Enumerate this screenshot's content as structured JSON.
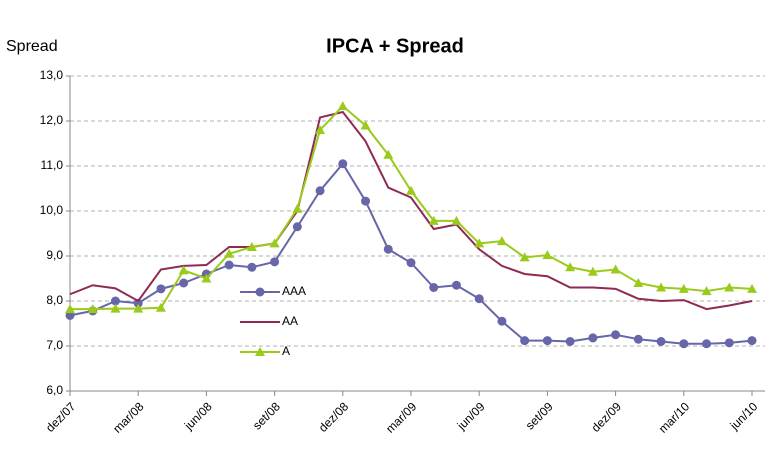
{
  "chart_data": {
    "type": "line",
    "title": "IPCA + Spread",
    "y_label": "Spread",
    "categories": [
      "dez/07",
      null,
      null,
      "mar/08",
      null,
      null,
      "jun/08",
      null,
      null,
      "set/08",
      null,
      null,
      "dez/08",
      null,
      null,
      "mar/09",
      null,
      null,
      "jun/09",
      null,
      null,
      "set/09",
      null,
      null,
      "dez/09",
      null,
      null,
      "mar/10",
      null,
      null,
      "jun/10"
    ],
    "series": [
      {
        "name": "AAA",
        "color": "#6666a8",
        "marker": "circle",
        "values": [
          7.68,
          7.78,
          8.0,
          7.95,
          8.27,
          8.4,
          8.6,
          8.8,
          8.75,
          8.87,
          9.65,
          10.45,
          11.05,
          10.22,
          9.15,
          8.85,
          8.3,
          8.35,
          8.05,
          7.55,
          7.12,
          7.12,
          7.1,
          7.18,
          7.25,
          7.15,
          7.1,
          7.05,
          7.05,
          7.07,
          7.12
        ]
      },
      {
        "name": "AA",
        "color": "#8e2a55",
        "marker": "none",
        "values": [
          8.15,
          8.35,
          8.28,
          8.0,
          8.7,
          8.78,
          8.8,
          9.2,
          9.2,
          9.28,
          10.0,
          12.08,
          12.2,
          11.55,
          10.52,
          10.3,
          9.6,
          9.7,
          9.15,
          8.78,
          8.6,
          8.55,
          8.3,
          8.3,
          8.27,
          8.05,
          8.0,
          8.02,
          7.82,
          7.9,
          8.0
        ]
      },
      {
        "name": "A",
        "color": "#9acb1c",
        "marker": "triangle",
        "values": [
          7.82,
          7.82,
          7.83,
          7.83,
          7.85,
          8.68,
          8.5,
          9.05,
          9.2,
          9.28,
          10.05,
          11.8,
          12.33,
          11.9,
          11.25,
          10.45,
          9.78,
          9.78,
          9.28,
          9.33,
          8.97,
          9.02,
          8.75,
          8.65,
          8.7,
          8.4,
          8.3,
          8.27,
          8.22,
          8.3,
          8.27
        ]
      }
    ],
    "ylim": [
      6,
      13
    ],
    "yticks": [
      {
        "value": 6,
        "label": "6,0"
      },
      {
        "value": 7,
        "label": "7,0"
      },
      {
        "value": 8,
        "label": "8,0"
      },
      {
        "value": 9,
        "label": "9,0"
      },
      {
        "value": 10,
        "label": "10,0"
      },
      {
        "value": 11,
        "label": "11,0"
      },
      {
        "value": 12,
        "label": "12,0"
      },
      {
        "value": 13,
        "label": "13,0"
      }
    ],
    "grid": true,
    "legend": "center-left"
  }
}
